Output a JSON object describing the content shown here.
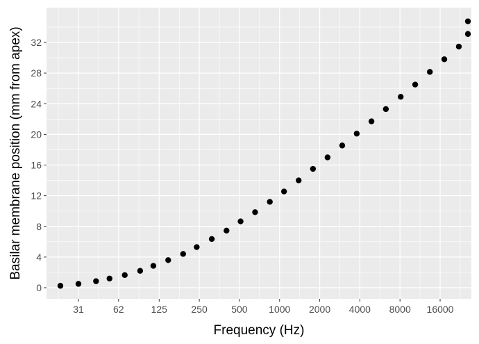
{
  "chart_data": {
    "type": "scatter",
    "title": "",
    "xlabel": "Frequency (Hz)",
    "ylabel": "Basilar membrane position (mm from apex)",
    "x_scale": "log2",
    "xlim": [
      18,
      28000
    ],
    "ylim": [
      -1.6,
      36.4
    ],
    "x_ticks": [
      {
        "value": 31,
        "label": "31"
      },
      {
        "value": 62,
        "label": "62"
      },
      {
        "value": 125,
        "label": "125"
      },
      {
        "value": 250,
        "label": "250"
      },
      {
        "value": 500,
        "label": "500"
      },
      {
        "value": 1000,
        "label": "1000"
      },
      {
        "value": 2000,
        "label": "2000"
      },
      {
        "value": 4000,
        "label": "4000"
      },
      {
        "value": 8000,
        "label": "8000"
      },
      {
        "value": 16000,
        "label": "16000"
      }
    ],
    "y_ticks": [
      {
        "value": 0,
        "label": "0"
      },
      {
        "value": 4,
        "label": "4"
      },
      {
        "value": 8,
        "label": "8"
      },
      {
        "value": 12,
        "label": "12"
      },
      {
        "value": 16,
        "label": "16"
      },
      {
        "value": 20,
        "label": "20"
      },
      {
        "value": 24,
        "label": "24"
      },
      {
        "value": 28,
        "label": "28"
      },
      {
        "value": 32,
        "label": "32"
      }
    ],
    "grid": true,
    "background_color": "#ebebeb",
    "grid_color": "#ffffff",
    "point_color": "#000000",
    "points": [
      {
        "x": 22.7,
        "y": 0.25
      },
      {
        "x": 31,
        "y": 0.5
      },
      {
        "x": 42,
        "y": 0.85
      },
      {
        "x": 53,
        "y": 1.2
      },
      {
        "x": 69,
        "y": 1.65
      },
      {
        "x": 90,
        "y": 2.2
      },
      {
        "x": 113,
        "y": 2.85
      },
      {
        "x": 146,
        "y": 3.6
      },
      {
        "x": 189,
        "y": 4.4
      },
      {
        "x": 239,
        "y": 5.3
      },
      {
        "x": 310,
        "y": 6.35
      },
      {
        "x": 400,
        "y": 7.45
      },
      {
        "x": 510,
        "y": 8.65
      },
      {
        "x": 655,
        "y": 9.85
      },
      {
        "x": 845,
        "y": 11.2
      },
      {
        "x": 1080,
        "y": 12.55
      },
      {
        "x": 1390,
        "y": 14.0
      },
      {
        "x": 1780,
        "y": 15.5
      },
      {
        "x": 2290,
        "y": 17.0
      },
      {
        "x": 2950,
        "y": 18.55
      },
      {
        "x": 3790,
        "y": 20.1
      },
      {
        "x": 4890,
        "y": 21.7
      },
      {
        "x": 6270,
        "y": 23.3
      },
      {
        "x": 8100,
        "y": 24.9
      },
      {
        "x": 10400,
        "y": 26.5
      },
      {
        "x": 13400,
        "y": 28.15
      },
      {
        "x": 17200,
        "y": 29.8
      },
      {
        "x": 22100,
        "y": 31.45
      },
      {
        "x": 28500,
        "y": 33.1
      },
      {
        "x": 36600,
        "y": 34.75
      }
    ]
  }
}
